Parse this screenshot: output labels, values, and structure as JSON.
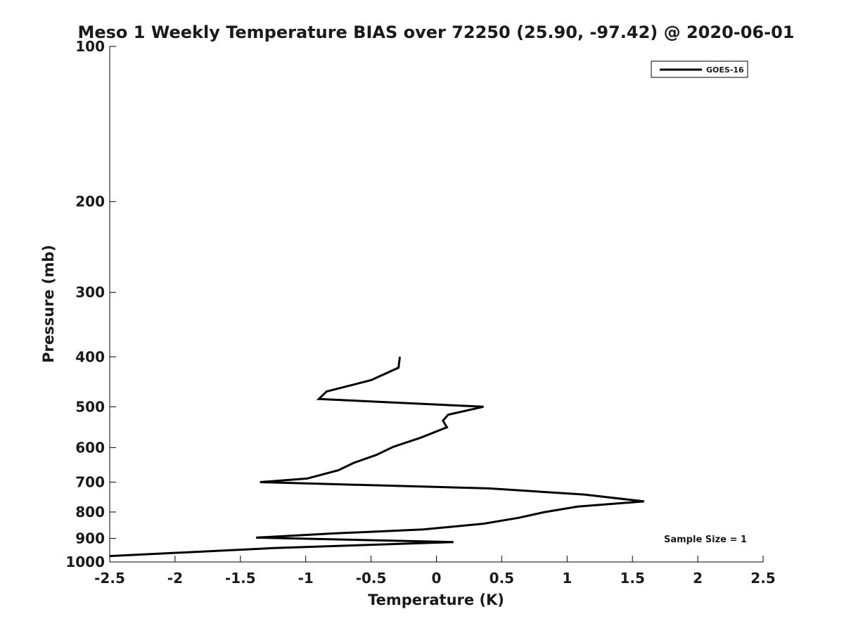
{
  "chart_data": {
    "type": "line",
    "title": "Meso 1 Weekly Temperature BIAS over 72250 (25.90, -97.42) @ 2020-06-01",
    "xlabel": "Temperature (K)",
    "ylabel": "Pressure (mb)",
    "xlim": [
      -2.5,
      2.5
    ],
    "ylim": [
      100,
      1000
    ],
    "y_scale": "log",
    "y_inverted": true,
    "x_ticks": [
      "-2.5",
      "-2",
      "-1.5",
      "-1",
      "-0.5",
      "0",
      "0.5",
      "1",
      "1.5",
      "2",
      "2.5"
    ],
    "x_tick_values": [
      -2.5,
      -2,
      -1.5,
      -1,
      -0.5,
      0,
      0.5,
      1,
      1.5,
      2,
      2.5
    ],
    "y_ticks": [
      "100",
      "200",
      "300",
      "400",
      "500",
      "600",
      "700",
      "800",
      "900",
      "1000"
    ],
    "y_tick_values": [
      100,
      200,
      300,
      400,
      500,
      600,
      700,
      800,
      900,
      1000
    ],
    "grid": false,
    "legend_position": "top-right",
    "series": [
      {
        "name": "GOES-16",
        "color": "#000000",
        "points": [
          [
            -0.28,
            400
          ],
          [
            -0.29,
            420
          ],
          [
            -0.5,
            444
          ],
          [
            -0.84,
            467
          ],
          [
            -0.9,
            483
          ],
          [
            0.36,
            500
          ],
          [
            0.09,
            518
          ],
          [
            0.05,
            532
          ],
          [
            0.08,
            548
          ],
          [
            -0.12,
            574
          ],
          [
            -0.33,
            598
          ],
          [
            -0.46,
            620
          ],
          [
            -0.63,
            642
          ],
          [
            -0.75,
            664
          ],
          [
            -0.99,
            689
          ],
          [
            -1.35,
            700
          ],
          [
            0.4,
            720
          ],
          [
            1.13,
            740
          ],
          [
            1.59,
            763
          ],
          [
            1.08,
            781
          ],
          [
            0.82,
            801
          ],
          [
            0.63,
            821
          ],
          [
            0.36,
            843
          ],
          [
            -0.1,
            865
          ],
          [
            -0.77,
            880
          ],
          [
            -1.38,
            897
          ],
          [
            0.13,
            915
          ],
          [
            -1.25,
            940
          ],
          [
            -2.5,
            974
          ]
        ]
      }
    ],
    "annotation": "Sample Size = 1"
  }
}
